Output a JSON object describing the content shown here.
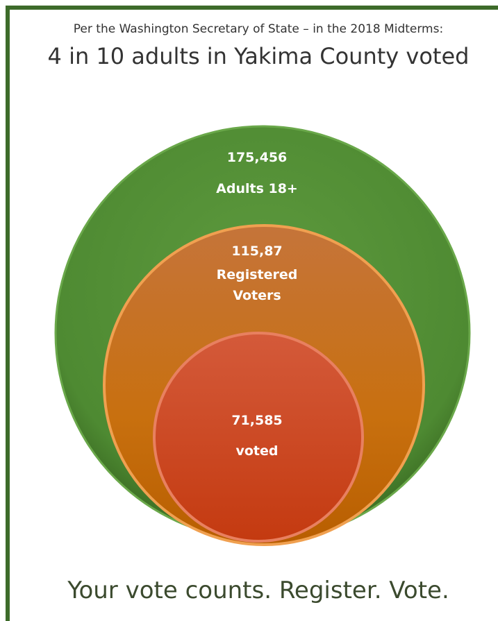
{
  "header": {
    "subtitle": "Per the Washington Secretary of State – in the 2018 Midterms:",
    "title": "4 in 10 adults in Yakima County voted"
  },
  "circles": [
    {
      "number": "175,456",
      "label": [
        "Adults 18+"
      ]
    },
    {
      "number": "115,87",
      "label": [
        "Registered",
        "Voters"
      ]
    },
    {
      "number": "71,585",
      "label": [
        "voted"
      ]
    }
  ],
  "footer": "Your vote counts.  Register. Vote."
}
